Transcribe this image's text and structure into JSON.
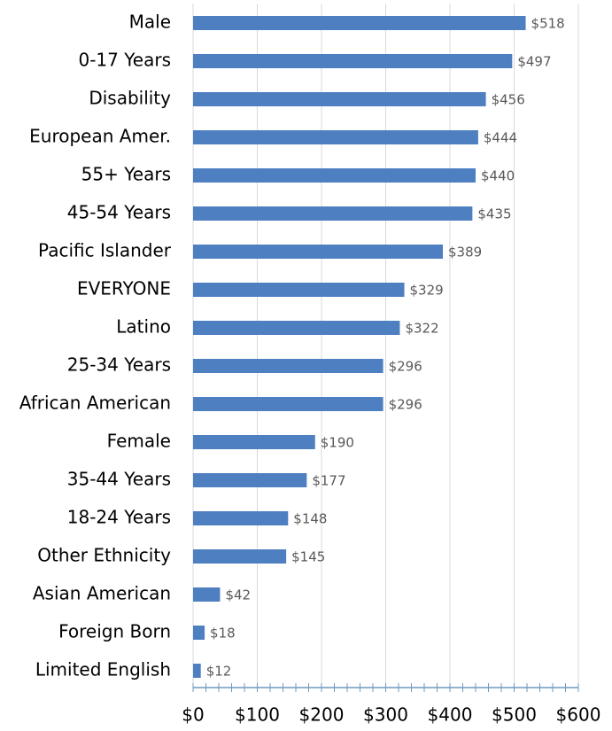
{
  "chart_data": {
    "type": "bar",
    "orientation": "horizontal",
    "color": "#4e7fc1",
    "categories": [
      "Male",
      "0-17 Years",
      "Disability",
      "European Amer.",
      "55+ Years",
      "45-54 Years",
      "Pacific Islander",
      "EVERYONE",
      "Latino",
      "25-34 Years",
      "African American",
      "Female",
      "35-44 Years",
      "18-24 Years",
      "Other Ethnicity",
      "Asian American",
      "Foreign Born",
      "Limited English"
    ],
    "values": [
      518,
      497,
      456,
      444,
      440,
      435,
      389,
      329,
      322,
      296,
      296,
      190,
      177,
      148,
      145,
      42,
      18,
      12
    ],
    "value_labels": [
      "$518",
      "$497",
      "$456",
      "$444",
      "$440",
      "$435",
      "$389",
      "$329",
      "$322",
      "$296",
      "$296",
      "$190",
      "$177",
      "$148",
      "$145",
      "$42",
      "$18",
      "$12"
    ],
    "xlim": [
      0,
      600
    ],
    "xticks": [
      {
        "value": 0,
        "label": "$0"
      },
      {
        "value": 100,
        "label": "$100"
      },
      {
        "value": 200,
        "label": "$200"
      },
      {
        "value": 300,
        "label": "$300"
      },
      {
        "value": 400,
        "label": "$400"
      },
      {
        "value": 500,
        "label": "$500"
      },
      {
        "value": 600,
        "label": "$600"
      }
    ],
    "xminorticks": [
      0,
      20,
      40,
      60,
      80,
      100,
      120,
      140,
      160,
      180,
      200,
      220,
      240,
      260,
      280,
      300,
      320,
      340,
      360,
      380,
      400,
      420,
      440,
      460,
      480,
      500,
      520,
      540,
      560,
      580,
      600
    ],
    "grid": true
  }
}
